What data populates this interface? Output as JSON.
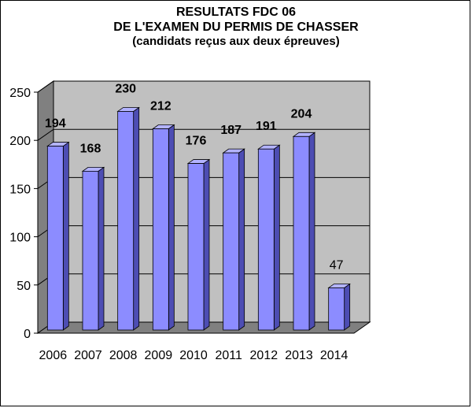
{
  "chart_data": {
    "type": "bar",
    "title_lines": [
      "RESULTATS FDC 06",
      "DE L'EXAMEN DU PERMIS DE CHASSER"
    ],
    "subtitle": "(candidats reçus aux deux épreuves)",
    "categories": [
      "2006",
      "2007",
      "2008",
      "2009",
      "2010",
      "2011",
      "2012",
      "2013",
      "2014"
    ],
    "values": [
      194,
      168,
      230,
      212,
      176,
      187,
      191,
      204,
      47
    ],
    "data_labels": [
      "194",
      "168",
      "230",
      "212",
      "176",
      "187",
      "191",
      "204",
      "47"
    ],
    "data_label_bold": [
      true,
      true,
      true,
      true,
      true,
      true,
      true,
      true,
      false
    ],
    "ylim": [
      0,
      250
    ],
    "yticks": [
      0,
      50,
      100,
      150,
      200,
      250
    ],
    "grid": true,
    "legend": "none",
    "colors": {
      "bar_front": "#8c8cff",
      "bar_side": "#4d4db3",
      "bar_top": "#b3b3ff",
      "back_wall": "#c0c0c0",
      "side_wall": "#808080",
      "floor": "#808080",
      "gridline": "#000000"
    }
  }
}
